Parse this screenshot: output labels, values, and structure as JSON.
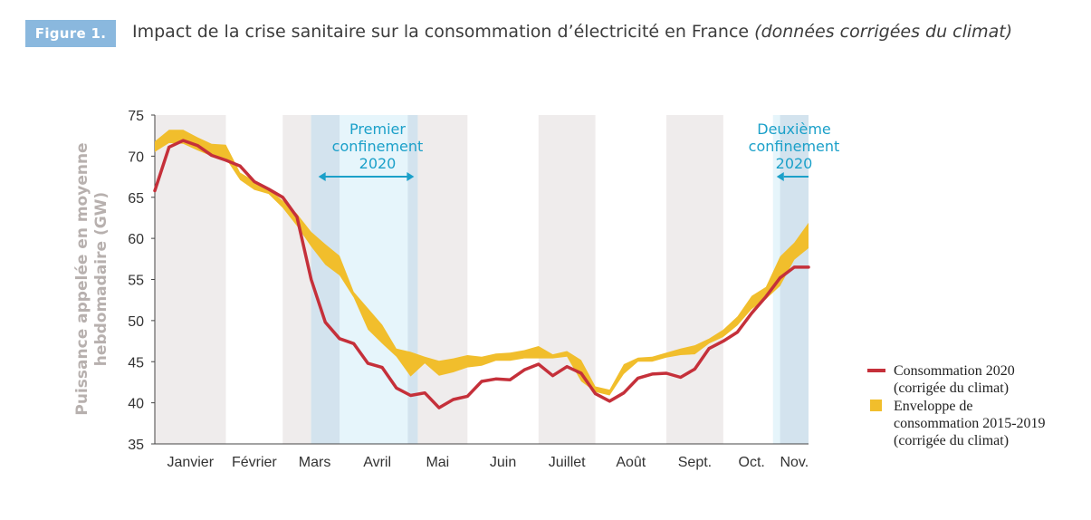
{
  "header": {
    "badge": "Figure 1.",
    "title": "Impact de la crise sanitaire sur la consommation d’électricité en France",
    "title_suffix": "(données corrigées du climat)"
  },
  "colors": {
    "consumption": "#c5303a",
    "envelope": "#f1be2c",
    "band_month": "#efecec",
    "confinement_fill": "#e6f5fb",
    "confinement_overlap": "#d3e3ee",
    "annotation": "#1ba0c9"
  },
  "chart_data": {
    "type": "line",
    "title": "Impact de la crise sanitaire sur la consommation d’électricité en France",
    "ylabel_lines": [
      "Puissance appelée en moyenne",
      "hebdomadaire (GW)"
    ],
    "ylim": [
      35,
      75
    ],
    "yticks": [
      35,
      40,
      45,
      50,
      55,
      60,
      65,
      70,
      75
    ],
    "x_unit": "semaine",
    "xlim": [
      0,
      46
    ],
    "months": [
      {
        "label": "Janvier",
        "start": 0,
        "end": 5,
        "shaded": true
      },
      {
        "label": "Février",
        "start": 5,
        "end": 9,
        "shaded": false
      },
      {
        "label": "Mars",
        "start": 9,
        "end": 13.5,
        "shaded": true
      },
      {
        "label": "Avril",
        "start": 13.5,
        "end": 17.8,
        "shaded": true
      },
      {
        "label": "Mai",
        "start": 17.8,
        "end": 22,
        "shaded": true
      },
      {
        "label": "Juin",
        "start": 22,
        "end": 27,
        "shaded": false
      },
      {
        "label": "Juillet",
        "start": 27,
        "end": 31,
        "shaded": true
      },
      {
        "label": "Août",
        "start": 31,
        "end": 36,
        "shaded": false
      },
      {
        "label": "Sept.",
        "start": 36,
        "end": 40,
        "shaded": true
      },
      {
        "label": "Oct.",
        "start": 40,
        "end": 44,
        "shaded": false
      },
      {
        "label": "Nov.",
        "start": 44,
        "end": 46,
        "shaded": true
      }
    ],
    "confinements": [
      {
        "label_lines": [
          "Premier",
          "confinement",
          "2020"
        ],
        "start": 11,
        "end": 18.5
      },
      {
        "label_lines": [
          "Deuxième",
          "confinement",
          "2020"
        ],
        "start": 43.5,
        "end": 46
      }
    ],
    "series": [
      {
        "name": "Consommation 2020",
        "name_note": "(corrigée du climat)",
        "x": [
          0,
          1,
          2,
          3,
          4,
          5,
          6,
          7,
          8,
          9,
          10,
          11,
          12,
          13,
          14,
          15,
          16,
          17,
          18,
          19,
          20,
          21,
          22,
          23,
          24,
          25,
          26,
          27,
          28,
          29,
          30,
          31,
          32,
          33,
          34,
          35,
          36,
          37,
          38,
          39,
          40,
          41,
          42,
          43,
          44,
          45,
          46
        ],
        "values": [
          65.8,
          71.1,
          71.9,
          71.3,
          70.1,
          69.5,
          68.8,
          66.9,
          66.0,
          65.0,
          62.6,
          55.0,
          49.8,
          47.8,
          47.2,
          44.8,
          44.3,
          41.8,
          40.9,
          41.2,
          39.4,
          40.4,
          40.8,
          42.6,
          42.9,
          42.8,
          44.0,
          44.7,
          43.3,
          44.4,
          43.6,
          41.1,
          40.2,
          41.2,
          43.0,
          43.5,
          43.6,
          43.1,
          44.1,
          46.6,
          47.5,
          48.6,
          50.9,
          52.9,
          55.2,
          56.5,
          56.5
        ]
      },
      {
        "name": "Enveloppe de consommation 2015-2019",
        "name_note": "(corrigée du climat)",
        "type": "area",
        "x": [
          0,
          1,
          2,
          3,
          4,
          5,
          6,
          7,
          8,
          9,
          10,
          11,
          12,
          13,
          14,
          15,
          16,
          17,
          18,
          19,
          20,
          21,
          22,
          23,
          24,
          25,
          26,
          27,
          28,
          29,
          30,
          31,
          32,
          33,
          34,
          35,
          36,
          37,
          38,
          39,
          40,
          41,
          42,
          43,
          44,
          45,
          46
        ],
        "upper": [
          71.8,
          73.2,
          73.2,
          72.3,
          71.5,
          71.4,
          68.0,
          67.0,
          66.0,
          64.6,
          63.0,
          60.8,
          59.3,
          57.9,
          53.5,
          51.5,
          49.5,
          46.6,
          46.2,
          45.6,
          45.1,
          45.4,
          45.8,
          45.6,
          46.0,
          46.1,
          46.4,
          46.9,
          45.9,
          46.3,
          45.2,
          42.0,
          41.6,
          44.7,
          45.5,
          45.6,
          46.1,
          46.6,
          47.0,
          47.8,
          48.9,
          50.5,
          53.0,
          54.1,
          57.8,
          59.5,
          61.9
        ],
        "lower": [
          70.5,
          71.6,
          71.5,
          70.7,
          70.0,
          69.7,
          67.1,
          65.9,
          65.4,
          63.7,
          61.5,
          59.0,
          56.8,
          55.5,
          52.8,
          48.9,
          47.2,
          45.6,
          43.2,
          44.8,
          43.3,
          43.7,
          44.3,
          44.5,
          45.1,
          45.1,
          45.4,
          45.4,
          45.4,
          45.6,
          42.6,
          41.3,
          40.9,
          43.5,
          45.0,
          45.0,
          45.5,
          45.8,
          45.9,
          47.2,
          48.0,
          49.4,
          51.4,
          52.6,
          54.2,
          57.4,
          58.8
        ]
      }
    ],
    "legend": {
      "position": "right",
      "items": [
        {
          "kind": "line",
          "lines": [
            "Consommation 2020",
            "(corrigée du climat)"
          ]
        },
        {
          "kind": "area",
          "lines": [
            "Enveloppe de",
            "consommation 2015-2019",
            "(corrigée du climat)"
          ]
        }
      ]
    }
  }
}
